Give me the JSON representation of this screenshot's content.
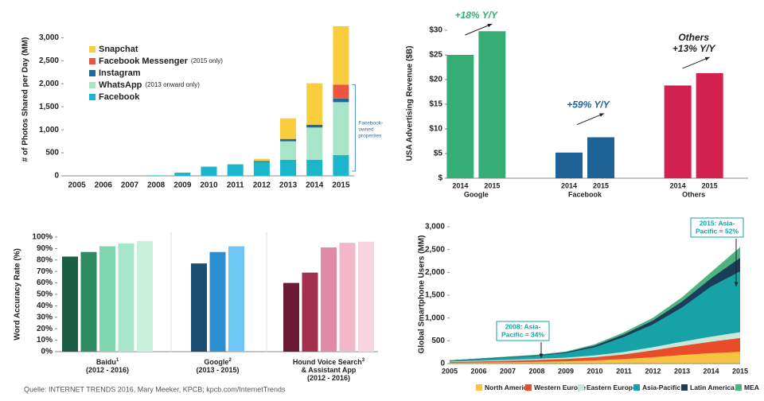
{
  "chart_data": [
    {
      "type": "stacked_bar",
      "y_label": "# of Photos Shared per Day (MM)",
      "categories": [
        "2005",
        "2006",
        "2007",
        "2008",
        "2009",
        "2010",
        "2011",
        "2012",
        "2013",
        "2014",
        "2015"
      ],
      "series": [
        {
          "name": "Facebook",
          "color": "#1bb5cc",
          "values": [
            0,
            0,
            0,
            10,
            70,
            200,
            250,
            300,
            350,
            350,
            450
          ]
        },
        {
          "name": "WhatsApp",
          "note": "(2013 onward only)",
          "color": "#a8e4c8",
          "values": [
            0,
            0,
            0,
            0,
            0,
            0,
            0,
            0,
            400,
            700,
            1150
          ]
        },
        {
          "name": "Instagram",
          "color": "#1f6a9a",
          "values": [
            0,
            0,
            0,
            0,
            0,
            0,
            0,
            20,
            50,
            60,
            80
          ]
        },
        {
          "name": "Facebook Messenger",
          "note": "(2015 only)",
          "color": "#e9553f",
          "values": [
            0,
            0,
            0,
            0,
            0,
            0,
            0,
            0,
            0,
            0,
            300
          ]
        },
        {
          "name": "Snapchat",
          "color": "#f9cd3e",
          "values": [
            0,
            0,
            0,
            0,
            0,
            0,
            0,
            50,
            450,
            900,
            1270
          ]
        }
      ],
      "ylim": [
        0,
        3300
      ],
      "yticks": [
        0,
        500,
        {
          "value": 1000,
          "label": "1,000"
        },
        {
          "value": 1500,
          "label": "1,500"
        },
        {
          "value": 2000,
          "label": "2,000"
        },
        {
          "value": 2500,
          "label": "2,500"
        },
        {
          "value": 3000,
          "label": "3,000"
        }
      ],
      "annotation": [
        "Facebook-",
        "owned",
        "properties"
      ]
    },
    {
      "type": "grouped_bar",
      "y_label": "USA Advertising Revenue ($B)",
      "categories": [
        "Google",
        "Facebook",
        "Others"
      ],
      "colors": [
        "#36ad74",
        "#1d6397",
        "#d2214f"
      ],
      "series": [
        {
          "name": "2014",
          "values": [
            25,
            5.2,
            18.8
          ]
        },
        {
          "name": "2015",
          "values": [
            29.8,
            8.3,
            21.3
          ]
        }
      ],
      "ylim": [
        0,
        30
      ],
      "yticks": [
        {
          "value": 0,
          "label": "$"
        },
        {
          "value": 5,
          "label": "$5"
        },
        {
          "value": 10,
          "label": "$10"
        },
        {
          "value": 15,
          "label": "$15"
        },
        {
          "value": 20,
          "label": "$20"
        },
        {
          "value": 25,
          "label": "$25"
        },
        {
          "value": 30,
          "label": "$30"
        }
      ],
      "annotations": [
        [
          "+18% Y/Y"
        ],
        [
          "+59% Y/Y"
        ],
        [
          "Others",
          "+13% Y/Y"
        ]
      ]
    },
    {
      "type": "bar_groups",
      "y_label": "Word Accuracy Rate (%)",
      "groups": [
        {
          "label": [
            "Baidu",
            "(2012 - 2016)"
          ],
          "footnote": "1",
          "values": [
            83,
            87,
            92,
            94.5,
            96.5
          ],
          "colors": [
            "#1b5e45",
            "#2e8b63",
            "#7fd6b0",
            "#a8e6c9",
            "#c9f0dc"
          ]
        },
        {
          "label": [
            "Google",
            "(2013 - 2015)"
          ],
          "footnote": "2",
          "values": [
            77,
            87,
            92
          ],
          "colors": [
            "#1b4f72",
            "#2e8fd0",
            "#6ec6f5"
          ]
        },
        {
          "label": [
            "Hound Voice Search",
            "& Assistant App",
            "(2012 - 2016)"
          ],
          "footnote": "3",
          "values": [
            60,
            69,
            91,
            95,
            96
          ],
          "colors": [
            "#6b1a36",
            "#a4304f",
            "#df8aa6",
            "#f2b7c9",
            "#f7d4df"
          ]
        }
      ],
      "ylim": [
        0,
        100
      ],
      "yticks": [
        {
          "value": 0,
          "label": "0%"
        },
        {
          "value": 10,
          "label": "10%"
        },
        {
          "value": 20,
          "label": "20%"
        },
        {
          "value": 30,
          "label": "30%"
        },
        {
          "value": 40,
          "label": "40%"
        },
        {
          "value": 50,
          "label": "50%"
        },
        {
          "value": 60,
          "label": "60%"
        },
        {
          "value": 70,
          "label": "70%"
        },
        {
          "value": 80,
          "label": "80%"
        },
        {
          "value": 90,
          "label": "90%"
        },
        {
          "value": 100,
          "label": "100%"
        }
      ]
    },
    {
      "type": "stacked_area",
      "y_label": "Global Smartphone Users (MM)",
      "x": [
        2005,
        2006,
        2007,
        2008,
        2009,
        2010,
        2011,
        2012,
        2013,
        2014,
        2015
      ],
      "xlim": [
        2005,
        2015
      ],
      "xticks": [
        2005,
        2006,
        2007,
        2008,
        2009,
        2010,
        2011,
        2012,
        2013,
        2014,
        2015
      ],
      "series": [
        {
          "name": "North America",
          "color": "#f6c342",
          "values": [
            20,
            25,
            30,
            40,
            50,
            70,
            100,
            140,
            190,
            230,
            260
          ]
        },
        {
          "name": "Western Europe",
          "color": "#e84c2a",
          "values": [
            15,
            20,
            30,
            40,
            50,
            70,
            100,
            150,
            200,
            250,
            300
          ]
        },
        {
          "name": "Eastern Europe",
          "color": "#c8e9d9",
          "values": [
            10,
            15,
            20,
            25,
            30,
            40,
            55,
            70,
            90,
            110,
            130
          ]
        },
        {
          "name": "Asia-Pacific",
          "color": "#17a2a8",
          "values": [
            20,
            40,
            55,
            65,
            100,
            180,
            330,
            500,
            750,
            1100,
            1330
          ]
        },
        {
          "name": "Latin America",
          "color": "#1a3d5a",
          "values": [
            3,
            6,
            9,
            12,
            18,
            35,
            55,
            85,
            130,
            180,
            300
          ]
        },
        {
          "name": "MEA",
          "color": "#4fb381",
          "values": [
            2,
            4,
            6,
            8,
            12,
            25,
            40,
            55,
            90,
            130,
            230
          ]
        }
      ],
      "ylim": [
        0,
        3000
      ],
      "yticks": [
        0,
        500,
        {
          "value": 1000,
          "label": "1,000"
        },
        {
          "value": 1500,
          "label": "1,500"
        },
        {
          "value": 2000,
          "label": "2,000"
        },
        {
          "value": 2500,
          "label": "2,500"
        },
        {
          "value": 3000,
          "label": "3,000"
        }
      ],
      "annotations": [
        [
          "2015: Asia-",
          "Pacific = 52%"
        ],
        [
          "2008: Asia-",
          "Pacific = 34%"
        ]
      ]
    }
  ],
  "source": "Quelle: INTERNET TRENDS 2016, Mary Meeker, KPCB; kpcb.com/InternetTrends"
}
